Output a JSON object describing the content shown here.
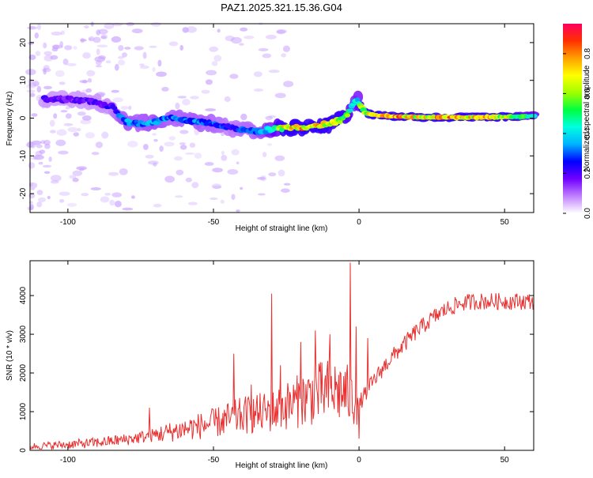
{
  "title": "PAZ1.2025.321.15.36.G04",
  "chart_data": [
    {
      "type": "heatmap",
      "xlabel": "Height of straight line (km)",
      "ylabel": "Frequency (Hz)",
      "xlim": [
        -113,
        60
      ],
      "ylim": [
        -25,
        25
      ],
      "xticks": [
        -100,
        -50,
        0,
        50
      ],
      "yticks": [
        -20,
        -10,
        0,
        10,
        20
      ],
      "colorbar": {
        "label": "Normalized spectral amplitude",
        "range": [
          0,
          0.95
        ],
        "ticks": [
          0.0,
          0.2,
          0.4,
          0.6,
          0.8
        ],
        "colors": [
          "#ffffff",
          "#c080ff",
          "#7000ff",
          "#0000ff",
          "#00b0ff",
          "#00ffe0",
          "#00ff40",
          "#a0ff00",
          "#ffff00",
          "#ffa000",
          "#ff3000",
          "#ff0060"
        ]
      },
      "ridge": {
        "x": [
          -108,
          -100,
          -92,
          -85,
          -80,
          -75,
          -70,
          -65,
          -60,
          -55,
          -50,
          -45,
          -40,
          -35,
          -30,
          -25,
          -20,
          -15,
          -10,
          -5,
          -3,
          -1,
          0,
          2,
          5,
          10,
          20,
          30,
          40,
          50,
          60
        ],
        "frequency": [
          5,
          5,
          4.5,
          3,
          -1,
          -1.5,
          -1,
          0,
          -0.5,
          -1,
          -1.5,
          -2.5,
          -3,
          -3.5,
          -3,
          -2.5,
          -2.5,
          -2,
          -1.5,
          0,
          2,
          5,
          4,
          1.5,
          0.8,
          0.5,
          0.3,
          0.2,
          0.2,
          0.3,
          0.5
        ],
        "amplitude": [
          0.2,
          0.18,
          0.2,
          0.22,
          0.35,
          0.3,
          0.35,
          0.3,
          0.3,
          0.32,
          0.3,
          0.25,
          0.28,
          0.3,
          0.45,
          0.7,
          0.75,
          0.75,
          0.7,
          0.6,
          0.5,
          0.4,
          0.5,
          0.65,
          0.75,
          0.85,
          0.7,
          0.8,
          0.75,
          0.65,
          0.5
        ]
      }
    },
    {
      "type": "line",
      "xlabel": "Height of straight line (km)",
      "ylabel": "SNR (10 * v/v)",
      "xlim": [
        -113,
        60
      ],
      "ylim": [
        0,
        4900
      ],
      "xticks": [
        -100,
        -50,
        0,
        50
      ],
      "yticks": [
        0,
        1000,
        2000,
        3000,
        4000
      ],
      "color": "#e83030",
      "trend": {
        "x": [
          -113,
          -100,
          -90,
          -80,
          -70,
          -60,
          -50,
          -45,
          -40,
          -35,
          -30,
          -25,
          -20,
          -15,
          -10,
          -5,
          0,
          5,
          10,
          15,
          20,
          25,
          30,
          35,
          40,
          45,
          50,
          55,
          60
        ],
        "y": [
          100,
          150,
          200,
          280,
          400,
          550,
          700,
          800,
          900,
          950,
          1000,
          1150,
          1300,
          1450,
          1550,
          1500,
          1200,
          1800,
          2300,
          2700,
          3100,
          3400,
          3650,
          3800,
          3850,
          3850,
          3850,
          3850,
          3850
        ]
      },
      "peaks": [
        {
          "x": -72,
          "y": 1100
        },
        {
          "x": -43,
          "y": 2500
        },
        {
          "x": -37,
          "y": 1700
        },
        {
          "x": -30,
          "y": 4050
        },
        {
          "x": -27,
          "y": 2200
        },
        {
          "x": -20,
          "y": 2800
        },
        {
          "x": -15,
          "y": 3100
        },
        {
          "x": -10,
          "y": 3000
        },
        {
          "x": -3,
          "y": 4850
        },
        {
          "x": -1,
          "y": 3200
        },
        {
          "x": 0,
          "y": 300
        },
        {
          "x": 3,
          "y": 2900
        }
      ]
    }
  ]
}
